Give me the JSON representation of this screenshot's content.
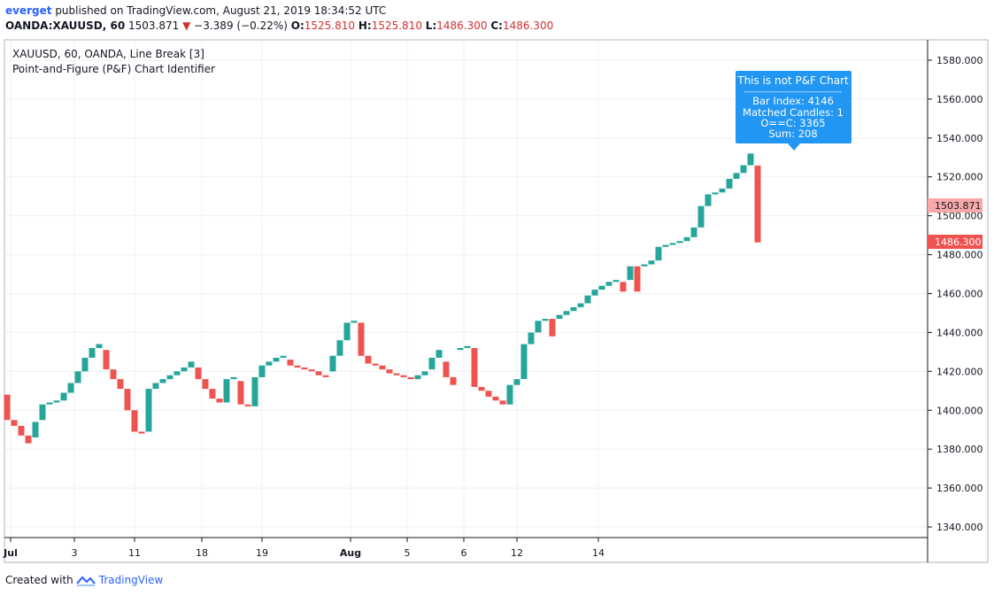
{
  "header": {
    "user": "everget",
    "published": "published on TradingView.com, August 21, 2019 18:34:52 UTC"
  },
  "quote": {
    "symbol": "OANDA:XAUUSD, 60",
    "last": "1503.871",
    "change": "−3.389 (−0.22%)",
    "o_label": "O:",
    "o": "1525.810",
    "h_label": "H:",
    "h": "1525.810",
    "l_label": "L:",
    "l": "1486.300",
    "c_label": "C:",
    "c": "1486.300"
  },
  "legend": {
    "line1": "XAUUSD, 60, OANDA, Line Break [3]",
    "line2": "Point-and-Figure (P&F) Chart Identifier"
  },
  "tooltip": {
    "title": "This is not P&F Chart",
    "separator": "----------------------------------",
    "bar_index": "Bar Index: 4146",
    "matched": "Matched Candles: 1",
    "oc": "O==C: 3365",
    "sum": "Sum: 208"
  },
  "price_tags": {
    "current": "1503.871",
    "close": "1486.300"
  },
  "footer": {
    "created": "Created with",
    "brand": "TradingView"
  },
  "colors": {
    "up": "#26a69a",
    "down": "#ef5350",
    "tooltip_bg": "#2196f3",
    "current_tag": "#f7a9a9",
    "close_tag": "#ef5350"
  },
  "chart_data": {
    "type": "bar",
    "style": "line-break-candles",
    "ylim": [
      1335,
      1590
    ],
    "y_ticks": [
      1340,
      1360,
      1380,
      1400,
      1420,
      1440,
      1460,
      1480,
      1500,
      1520,
      1540,
      1560,
      1580
    ],
    "y_tick_labels": [
      "1340.000",
      "1360.000",
      "1380.000",
      "1400.000",
      "1420.000",
      "1440.000",
      "1460.000",
      "1480.000",
      "1500.000",
      "1520.000",
      "1540.000",
      "1560.000",
      "1580.000"
    ],
    "x_ticks": [
      {
        "index": 0.5,
        "label": "Jul",
        "bold": true
      },
      {
        "index": 9.5,
        "label": "3",
        "bold": false
      },
      {
        "index": 18,
        "label": "11",
        "bold": false
      },
      {
        "index": 27.5,
        "label": "18",
        "bold": false
      },
      {
        "index": 36,
        "label": "19",
        "bold": false
      },
      {
        "index": 48.5,
        "label": "Aug",
        "bold": true
      },
      {
        "index": 56.5,
        "label": "5",
        "bold": false
      },
      {
        "index": 64.5,
        "label": "6",
        "bold": false
      },
      {
        "index": 72,
        "label": "12",
        "bold": false
      },
      {
        "index": 83.5,
        "label": "14",
        "bold": false
      }
    ],
    "bricks": [
      {
        "o": 1408,
        "c": 1395
      },
      {
        "o": 1395,
        "c": 1392
      },
      {
        "o": 1392,
        "c": 1387
      },
      {
        "o": 1387,
        "c": 1383
      },
      {
        "o": 1386,
        "c": 1394
      },
      {
        "o": 1395,
        "c": 1403
      },
      {
        "o": 1403,
        "c": 1404
      },
      {
        "o": 1404,
        "c": 1405
      },
      {
        "o": 1405,
        "c": 1409
      },
      {
        "o": 1409,
        "c": 1414
      },
      {
        "o": 1414,
        "c": 1420
      },
      {
        "o": 1420,
        "c": 1427
      },
      {
        "o": 1427,
        "c": 1432
      },
      {
        "o": 1432,
        "c": 1434
      },
      {
        "o": 1431,
        "c": 1421
      },
      {
        "o": 1421,
        "c": 1416
      },
      {
        "o": 1416,
        "c": 1411
      },
      {
        "o": 1411,
        "c": 1400
      },
      {
        "o": 1400,
        "c": 1389
      },
      {
        "o": 1389,
        "c": 1388
      },
      {
        "o": 1389,
        "c": 1411
      },
      {
        "o": 1411,
        "c": 1414
      },
      {
        "o": 1414,
        "c": 1416
      },
      {
        "o": 1416,
        "c": 1418
      },
      {
        "o": 1418,
        "c": 1420
      },
      {
        "o": 1420,
        "c": 1422
      },
      {
        "o": 1422,
        "c": 1425
      },
      {
        "o": 1422,
        "c": 1416
      },
      {
        "o": 1416,
        "c": 1411
      },
      {
        "o": 1411,
        "c": 1406
      },
      {
        "o": 1406,
        "c": 1404
      },
      {
        "o": 1404,
        "c": 1416
      },
      {
        "o": 1416,
        "c": 1417
      },
      {
        "o": 1415,
        "c": 1403
      },
      {
        "o": 1403,
        "c": 1402
      },
      {
        "o": 1402,
        "c": 1417
      },
      {
        "o": 1417,
        "c": 1423
      },
      {
        "o": 1423,
        "c": 1425
      },
      {
        "o": 1425,
        "c": 1427
      },
      {
        "o": 1427,
        "c": 1428
      },
      {
        "o": 1426,
        "c": 1423
      },
      {
        "o": 1423,
        "c": 1422
      },
      {
        "o": 1422,
        "c": 1421
      },
      {
        "o": 1421,
        "c": 1420
      },
      {
        "o": 1420,
        "c": 1418
      },
      {
        "o": 1418,
        "c": 1417
      },
      {
        "o": 1420,
        "c": 1428
      },
      {
        "o": 1428,
        "c": 1436
      },
      {
        "o": 1436,
        "c": 1445
      },
      {
        "o": 1445,
        "c": 1446
      },
      {
        "o": 1445,
        "c": 1428
      },
      {
        "o": 1428,
        "c": 1424
      },
      {
        "o": 1424,
        "c": 1423
      },
      {
        "o": 1423,
        "c": 1421
      },
      {
        "o": 1421,
        "c": 1419
      },
      {
        "o": 1419,
        "c": 1418
      },
      {
        "o": 1418,
        "c": 1417
      },
      {
        "o": 1417,
        "c": 1416
      },
      {
        "o": 1416,
        "c": 1418
      },
      {
        "o": 1418,
        "c": 1420
      },
      {
        "o": 1421,
        "c": 1427
      },
      {
        "o": 1427,
        "c": 1431
      },
      {
        "o": 1425,
        "c": 1417
      },
      {
        "o": 1417,
        "c": 1413
      },
      {
        "o": 1431,
        "c": 1432
      },
      {
        "o": 1432,
        "c": 1433
      },
      {
        "o": 1432,
        "c": 1412
      },
      {
        "o": 1412,
        "c": 1410
      },
      {
        "o": 1410,
        "c": 1407
      }
    ],
    "bricks2": [
      {
        "o": 1407,
        "c": 1405
      },
      {
        "o": 1405,
        "c": 1403
      },
      {
        "o": 1403,
        "c": 1413
      },
      {
        "o": 1413,
        "c": 1416
      },
      {
        "o": 1416,
        "c": 1434
      },
      {
        "o": 1434,
        "c": 1440
      },
      {
        "o": 1440,
        "c": 1446
      },
      {
        "o": 1446,
        "c": 1447
      },
      {
        "o": 1447,
        "c": 1438
      },
      {
        "o": 1447,
        "c": 1449
      },
      {
        "o": 1449,
        "c": 1451
      },
      {
        "o": 1451,
        "c": 1453
      },
      {
        "o": 1453,
        "c": 1455
      },
      {
        "o": 1455,
        "c": 1459
      },
      {
        "o": 1459,
        "c": 1462
      },
      {
        "o": 1462,
        "c": 1464
      },
      {
        "o": 1464,
        "c": 1466
      },
      {
        "o": 1466,
        "c": 1467
      },
      {
        "o": 1466,
        "c": 1461
      },
      {
        "o": 1467,
        "c": 1474
      },
      {
        "o": 1474,
        "c": 1461
      },
      {
        "o": 1474,
        "c": 1475
      },
      {
        "o": 1475,
        "c": 1477
      },
      {
        "o": 1477,
        "c": 1484
      },
      {
        "o": 1484,
        "c": 1485
      },
      {
        "o": 1485,
        "c": 1486
      },
      {
        "o": 1486,
        "c": 1487
      },
      {
        "o": 1487,
        "c": 1489
      },
      {
        "o": 1489,
        "c": 1494
      },
      {
        "o": 1494,
        "c": 1505
      },
      {
        "o": 1505,
        "c": 1511
      },
      {
        "o": 1511,
        "c": 1512
      },
      {
        "o": 1512,
        "c": 1514
      },
      {
        "o": 1514,
        "c": 1519
      },
      {
        "o": 1519,
        "c": 1522
      },
      {
        "o": 1522,
        "c": 1526
      },
      {
        "o": 1526,
        "c": 1532
      },
      {
        "o": 1525.81,
        "c": 1486.3
      }
    ]
  }
}
